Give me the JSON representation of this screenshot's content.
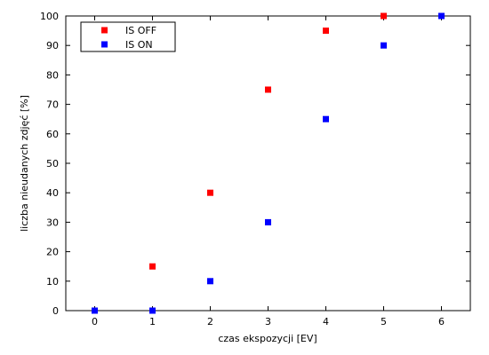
{
  "chart_data": {
    "type": "scatter",
    "title": "",
    "xlabel": "czas ekspozycji [EV]",
    "ylabel": "liczba nieudanych zdjęć [%]",
    "xlim": [
      -0.5,
      6.5
    ],
    "ylim": [
      0,
      100
    ],
    "xticks": [
      "0",
      "1",
      "2",
      "3",
      "4",
      "5",
      "6"
    ],
    "yticks": [
      "0",
      "10",
      "20",
      "30",
      "40",
      "50",
      "60",
      "70",
      "80",
      "90",
      "100"
    ],
    "grid": false,
    "legend_position": "top-left",
    "series": [
      {
        "name": "IS OFF",
        "color": "#ff0000",
        "x": [
          0,
          1,
          2,
          3,
          4,
          5,
          6
        ],
        "y": [
          0,
          15,
          40,
          75,
          95,
          100,
          100
        ]
      },
      {
        "name": "IS ON",
        "color": "#0000ff",
        "x": [
          0,
          1,
          2,
          3,
          4,
          5,
          6
        ],
        "y": [
          0,
          0,
          10,
          30,
          65,
          90,
          100
        ]
      }
    ]
  }
}
